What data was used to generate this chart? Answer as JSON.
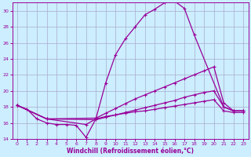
{
  "xlabel": "Windchill (Refroidissement éolien,°C)",
  "bg_color": "#cceeff",
  "line_color": "#990099",
  "grid_color": "#aaaacc",
  "xlim": [
    -0.5,
    23.5
  ],
  "ylim": [
    14,
    31
  ],
  "yticks": [
    14,
    16,
    18,
    20,
    22,
    24,
    26,
    28,
    30
  ],
  "xticks": [
    0,
    1,
    2,
    3,
    4,
    5,
    6,
    7,
    8,
    9,
    10,
    11,
    12,
    13,
    14,
    15,
    16,
    17,
    18,
    19,
    20,
    21,
    22,
    23
  ],
  "curve1_x": [
    0,
    1,
    2,
    3,
    4,
    5,
    6,
    7,
    8,
    9,
    10,
    11,
    12,
    13,
    14,
    15,
    16,
    17,
    18,
    21,
    22,
    23
  ],
  "curve1_y": [
    18.2,
    17.7,
    16.5,
    16.0,
    15.8,
    15.8,
    15.7,
    14.2,
    16.5,
    21.0,
    24.5,
    26.5,
    28.0,
    29.5,
    30.2,
    31.0,
    31.2,
    30.3,
    27.0,
    18.0,
    17.5,
    17.5
  ],
  "curve2_x": [
    0,
    3,
    8,
    9,
    10,
    11,
    12,
    13,
    14,
    15,
    16,
    17,
    18,
    19,
    20,
    21,
    22,
    23
  ],
  "curve2_y": [
    18.2,
    16.5,
    16.6,
    17.2,
    17.8,
    18.4,
    19.0,
    19.5,
    20.0,
    20.5,
    21.0,
    21.5,
    22.0,
    22.5,
    23.0,
    18.5,
    17.5,
    17.5
  ],
  "curve3_x": [
    0,
    3,
    8,
    9,
    10,
    11,
    12,
    13,
    14,
    15,
    16,
    17,
    18,
    19,
    20,
    21,
    22,
    23
  ],
  "curve3_y": [
    18.2,
    16.5,
    16.4,
    16.7,
    17.0,
    17.3,
    17.6,
    17.9,
    18.2,
    18.5,
    18.8,
    19.2,
    19.5,
    19.8,
    20.0,
    18.0,
    17.5,
    17.5
  ],
  "curve4_x": [
    0,
    3,
    7,
    8,
    9,
    10,
    11,
    12,
    13,
    14,
    15,
    16,
    17,
    18,
    19,
    20,
    21,
    22,
    23
  ],
  "curve4_y": [
    18.2,
    16.5,
    15.8,
    16.5,
    16.8,
    17.0,
    17.2,
    17.4,
    17.5,
    17.7,
    17.9,
    18.1,
    18.3,
    18.5,
    18.7,
    18.9,
    17.5,
    17.3,
    17.3
  ]
}
